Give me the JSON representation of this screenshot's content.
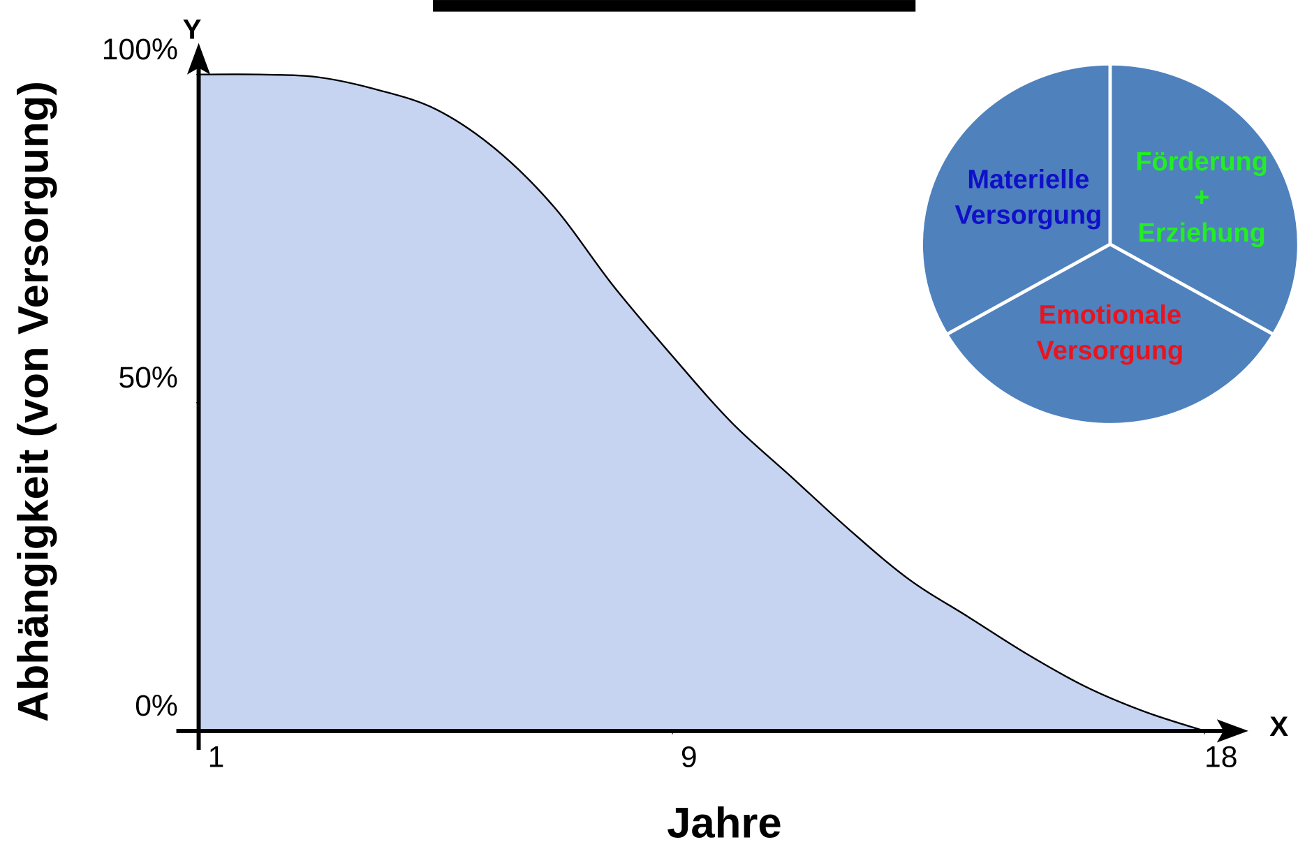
{
  "chart_data": [
    {
      "type": "area",
      "x": [
        1,
        2,
        3,
        4,
        5,
        6,
        7,
        8,
        9,
        10,
        11,
        12,
        13,
        14,
        15,
        16,
        17,
        18
      ],
      "values": [
        100,
        100,
        99.6,
        97.7,
        94.7,
        88.7,
        79.8,
        67.8,
        57.1,
        47,
        38.8,
        30.6,
        23.1,
        17.4,
        11.7,
        6.7,
        2.9,
        0
      ],
      "color": "#c6d4f2",
      "xlim": [
        1,
        18
      ],
      "xticks": [
        1,
        9,
        18
      ],
      "ylim": [
        0,
        100
      ],
      "yticks": [
        {
          "value": 0,
          "label": "0%"
        },
        {
          "value": 50,
          "label": "50%"
        },
        {
          "value": 100,
          "label": "100%"
        }
      ],
      "x_label": "Jahre",
      "y_label": "Abhängigkeit (von Versorgung)",
      "x_axis_name": "X",
      "y_axis_name": "Y"
    },
    {
      "type": "pie",
      "categories": [
        [
          "Förderung",
          "+",
          "Erziehung"
        ],
        [
          "Emotionale",
          "Versorgung"
        ],
        [
          "Materielle",
          "Versorgung"
        ]
      ],
      "values": [
        33.3,
        33.3,
        33.3
      ],
      "color": "#4f81bd",
      "label_colors": [
        "#22ee22",
        "#e8141e",
        "#1010c8"
      ]
    }
  ]
}
